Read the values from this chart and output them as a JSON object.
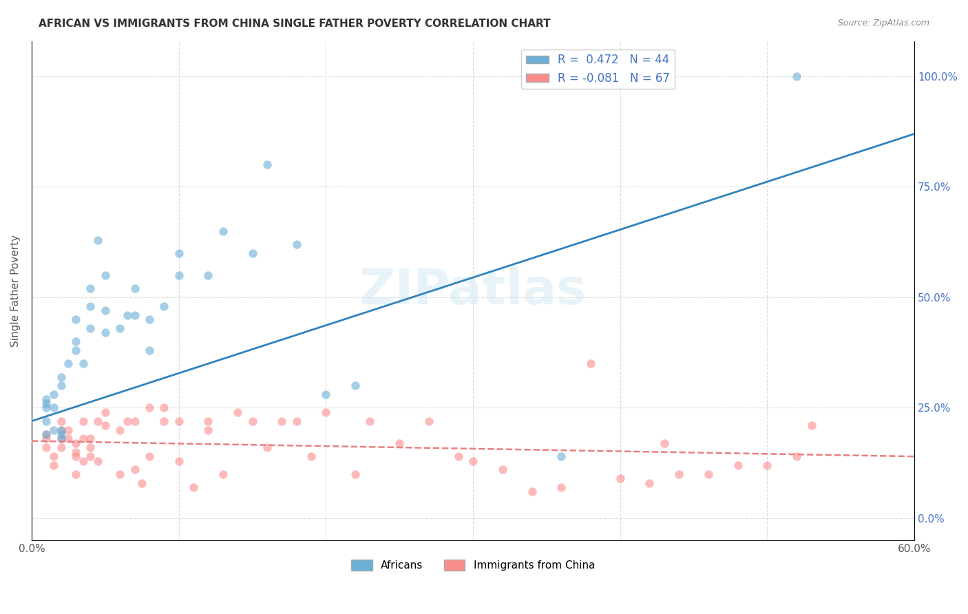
{
  "title": "AFRICAN VS IMMIGRANTS FROM CHINA SINGLE FATHER POVERTY CORRELATION CHART",
  "source": "Source: ZipAtlas.com",
  "ylabel": "Single Father Poverty",
  "ytick_labels": [
    "0.0%",
    "25.0%",
    "50.0%",
    "75.0%",
    "100.0%"
  ],
  "ytick_values": [
    0.0,
    0.25,
    0.5,
    0.75,
    1.0
  ],
  "xlim": [
    0.0,
    0.6
  ],
  "ylim": [
    -0.05,
    1.08
  ],
  "legend_label1": "R =  0.472   N = 44",
  "legend_label2": "R = -0.081   N = 67",
  "legend_label_africans": "Africans",
  "legend_label_china": "Immigrants from China",
  "color_african": "#6baed6",
  "color_china": "#fc8d8d",
  "color_line_african": "#3182bd",
  "color_line_china": "#e87f7f",
  "watermark": "ZIPatlas",
  "africans_x": [
    0.02,
    0.02,
    0.02,
    0.01,
    0.01,
    0.01,
    0.01,
    0.01,
    0.015,
    0.015,
    0.015,
    0.02,
    0.02,
    0.025,
    0.03,
    0.03,
    0.03,
    0.035,
    0.04,
    0.04,
    0.04,
    0.045,
    0.05,
    0.05,
    0.05,
    0.06,
    0.065,
    0.07,
    0.07,
    0.08,
    0.08,
    0.09,
    0.1,
    0.1,
    0.12,
    0.13,
    0.15,
    0.16,
    0.18,
    0.2,
    0.22,
    0.36,
    0.43,
    0.52
  ],
  "africans_y": [
    0.18,
    0.19,
    0.2,
    0.19,
    0.22,
    0.25,
    0.26,
    0.27,
    0.2,
    0.25,
    0.28,
    0.3,
    0.32,
    0.35,
    0.38,
    0.4,
    0.45,
    0.35,
    0.43,
    0.48,
    0.52,
    0.63,
    0.42,
    0.47,
    0.55,
    0.43,
    0.46,
    0.46,
    0.52,
    0.38,
    0.45,
    0.48,
    0.55,
    0.6,
    0.55,
    0.65,
    0.6,
    0.8,
    0.62,
    0.28,
    0.3,
    0.14,
    1.0,
    1.0
  ],
  "china_x": [
    0.01,
    0.01,
    0.01,
    0.015,
    0.015,
    0.02,
    0.02,
    0.02,
    0.02,
    0.025,
    0.025,
    0.03,
    0.03,
    0.03,
    0.03,
    0.035,
    0.035,
    0.035,
    0.04,
    0.04,
    0.04,
    0.045,
    0.045,
    0.05,
    0.05,
    0.06,
    0.06,
    0.065,
    0.07,
    0.07,
    0.075,
    0.08,
    0.08,
    0.09,
    0.09,
    0.1,
    0.1,
    0.11,
    0.12,
    0.12,
    0.13,
    0.14,
    0.15,
    0.16,
    0.17,
    0.18,
    0.19,
    0.2,
    0.22,
    0.23,
    0.25,
    0.27,
    0.29,
    0.3,
    0.32,
    0.34,
    0.36,
    0.38,
    0.4,
    0.42,
    0.43,
    0.44,
    0.46,
    0.48,
    0.5,
    0.52,
    0.53
  ],
  "china_y": [
    0.16,
    0.18,
    0.19,
    0.12,
    0.14,
    0.18,
    0.2,
    0.16,
    0.22,
    0.18,
    0.2,
    0.14,
    0.15,
    0.17,
    0.1,
    0.13,
    0.18,
    0.22,
    0.14,
    0.16,
    0.18,
    0.13,
    0.22,
    0.21,
    0.24,
    0.1,
    0.2,
    0.22,
    0.11,
    0.22,
    0.08,
    0.14,
    0.25,
    0.22,
    0.25,
    0.13,
    0.22,
    0.07,
    0.2,
    0.22,
    0.1,
    0.24,
    0.22,
    0.16,
    0.22,
    0.22,
    0.14,
    0.24,
    0.1,
    0.22,
    0.17,
    0.22,
    0.14,
    0.13,
    0.11,
    0.06,
    0.07,
    0.35,
    0.09,
    0.08,
    0.17,
    0.1,
    0.1,
    0.12,
    0.12,
    0.14,
    0.21
  ],
  "african_line_x": [
    0.0,
    0.6
  ],
  "african_line_y": [
    0.22,
    0.87
  ],
  "china_line_x": [
    0.0,
    0.6
  ],
  "china_line_y": [
    0.175,
    0.14
  ],
  "background_color": "#ffffff",
  "grid_color": "#cccccc",
  "marker_size": 80,
  "marker_alpha": 0.6
}
